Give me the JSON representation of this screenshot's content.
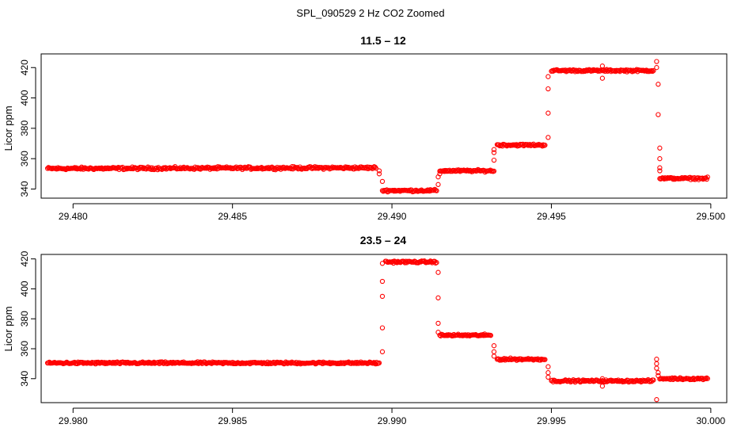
{
  "figure_title": "SPL_090529  2 Hz CO2 Zoomed",
  "colors": {
    "points": "#ff0000",
    "axis": "#000000",
    "background": "#ffffff"
  },
  "chart_data": [
    {
      "type": "scatter",
      "title": "11.5 – 12",
      "ylabel": "Licor ppm",
      "xlabel": "",
      "xlim": [
        29.479,
        29.5005
      ],
      "ylim": [
        334,
        429
      ],
      "xticks": [
        29.48,
        29.485,
        29.49,
        29.495,
        29.5
      ],
      "xtick_labels": [
        "29.480",
        "29.485",
        "29.490",
        "29.495",
        "29.500"
      ],
      "yticks": [
        340,
        360,
        380,
        400,
        420
      ],
      "ytick_labels": [
        "340",
        "360",
        "380",
        "400",
        "420"
      ],
      "grid": false,
      "legend": "none",
      "series": [
        {
          "segments": [
            {
              "x": [
                29.4792,
                29.4895
              ],
              "y": [
                353.5,
                354.0
              ],
              "noise": 1.2
            },
            {
              "x": [
                29.4897,
                29.4914
              ],
              "y": [
                339.0,
                339.0
              ],
              "noise": 1.0
            },
            {
              "x": [
                29.4915,
                29.4932
              ],
              "y": [
                352.0,
                352.0
              ],
              "noise": 1.0
            },
            {
              "x": [
                29.4933,
                29.4948
              ],
              "y": [
                369.0,
                369.0
              ],
              "noise": 1.0
            },
            {
              "x": [
                29.495,
                29.4982
              ],
              "y": [
                418.0,
                418.0
              ],
              "noise": 1.0
            },
            {
              "x": [
                29.4984,
                29.4999
              ],
              "y": [
                347.0,
                347.0
              ],
              "noise": 1.0
            }
          ],
          "transition_points": [
            [
              29.4896,
              350
            ],
            [
              29.4897,
              345
            ],
            [
              29.4896,
              352
            ],
            [
              29.49145,
              343
            ],
            [
              29.49145,
              348
            ],
            [
              29.4915,
              350
            ],
            [
              29.4932,
              359
            ],
            [
              29.4932,
              364
            ],
            [
              29.4932,
              366
            ],
            [
              29.4949,
              374
            ],
            [
              29.4949,
              390
            ],
            [
              29.4949,
              406
            ],
            [
              29.4949,
              414
            ],
            [
              29.4966,
              413
            ],
            [
              29.4966,
              421
            ],
            [
              29.4983,
              424
            ],
            [
              29.4983,
              420
            ],
            [
              29.49835,
              409
            ],
            [
              29.49835,
              389
            ],
            [
              29.4984,
              367
            ],
            [
              29.4984,
              360
            ],
            [
              29.4984,
              354
            ],
            [
              29.4984,
              352
            ]
          ]
        }
      ]
    },
    {
      "type": "scatter",
      "title": "23.5 – 24",
      "ylabel": "Licor ppm",
      "xlabel": "",
      "xlim": [
        29.979,
        30.0005
      ],
      "ylim": [
        324,
        423
      ],
      "xticks": [
        29.98,
        29.985,
        29.99,
        29.995,
        30.0
      ],
      "xtick_labels": [
        "29.980",
        "29.985",
        "29.990",
        "29.995",
        "30.000"
      ],
      "yticks": [
        340,
        360,
        380,
        400,
        420
      ],
      "ytick_labels": [
        "340",
        "360",
        "380",
        "400",
        "420"
      ],
      "grid": false,
      "legend": "none",
      "series": [
        {
          "segments": [
            {
              "x": [
                29.9792,
                29.9896
              ],
              "y": [
                350.5,
                350.5
              ],
              "noise": 1.0
            },
            {
              "x": [
                29.9898,
                29.9914
              ],
              "y": [
                418.0,
                418.0
              ],
              "noise": 1.0
            },
            {
              "x": [
                29.9915,
                29.9931
              ],
              "y": [
                369.0,
                369.0
              ],
              "noise": 1.0
            },
            {
              "x": [
                29.9933,
                29.9948
              ],
              "y": [
                353.0,
                353.0
              ],
              "noise": 1.0
            },
            {
              "x": [
                29.995,
                29.9982
              ],
              "y": [
                338.5,
                338.5
              ],
              "noise": 1.0
            },
            {
              "x": [
                29.9984,
                29.9999
              ],
              "y": [
                340.0,
                340.0
              ],
              "noise": 1.0
            }
          ],
          "transition_points": [
            [
              29.9897,
              358
            ],
            [
              29.9897,
              374
            ],
            [
              29.9897,
              395
            ],
            [
              29.9897,
              405
            ],
            [
              29.9897,
              417
            ],
            [
              29.99145,
              411
            ],
            [
              29.99145,
              394
            ],
            [
              29.99145,
              377
            ],
            [
              29.99145,
              371
            ],
            [
              29.9932,
              362
            ],
            [
              29.9932,
              358
            ],
            [
              29.9932,
              355
            ],
            [
              29.9949,
              348
            ],
            [
              29.9949,
              344
            ],
            [
              29.9949,
              341
            ],
            [
              29.9966,
              340
            ],
            [
              29.9966,
              335
            ],
            [
              29.9983,
              326
            ],
            [
              29.9983,
              353
            ],
            [
              29.9983,
              350
            ],
            [
              29.9983,
              347
            ],
            [
              29.99835,
              344
            ],
            [
              29.99835,
              342
            ]
          ]
        }
      ]
    }
  ]
}
